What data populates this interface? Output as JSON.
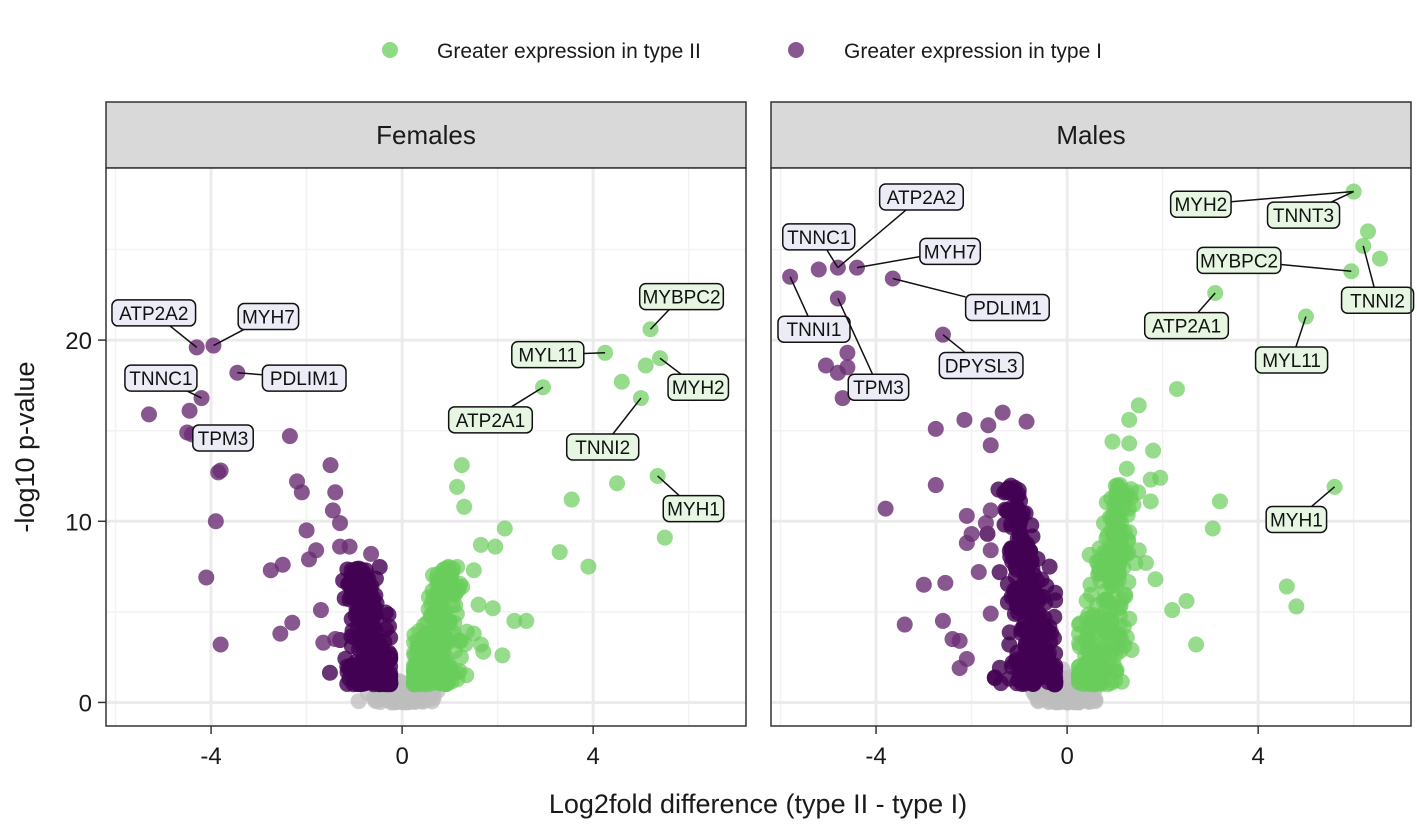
{
  "legend": {
    "items": [
      {
        "label": "Greater expression in type II",
        "color": "#6acd5b"
      },
      {
        "label": "Greater expression in type I",
        "color": "#7a3d80"
      }
    ]
  },
  "colors": {
    "type_ii": "#6acd5b",
    "type_i": "#6b2d74",
    "type_i_dense": "#440154",
    "nonsig": "#bebebe",
    "label_fill_type_ii": "#e6f6e2",
    "label_fill_type_i": "#ececf6",
    "strip_fill": "#d9d9d9"
  },
  "chart_data": {
    "type": "scatter",
    "xlabel": "Log2fold difference (type II - type I)",
    "ylabel": "-log10 p-value",
    "xlim": [
      -6.2,
      7.2
    ],
    "ylim": [
      -1.3,
      29.5
    ],
    "xticks": [
      -4,
      0,
      4
    ],
    "yticks": [
      0,
      10,
      20
    ],
    "grid": true,
    "legend_position": "top",
    "panels": [
      {
        "strip": "Females",
        "highlighted_points": [
          {
            "x": -4.3,
            "y": 19.6,
            "group": "type_i"
          },
          {
            "x": -3.95,
            "y": 19.7,
            "group": "type_i"
          },
          {
            "x": -3.45,
            "y": 18.2,
            "group": "type_i"
          },
          {
            "x": -4.2,
            "y": 16.8,
            "group": "type_i"
          },
          {
            "x": -4.45,
            "y": 16.1,
            "group": "type_i"
          },
          {
            "x": -5.3,
            "y": 15.9,
            "group": "type_i"
          },
          {
            "x": -4.5,
            "y": 14.9,
            "group": "type_i"
          },
          {
            "x": -4.4,
            "y": 14.8,
            "group": "type_i"
          },
          {
            "x": -2.35,
            "y": 14.7,
            "group": "type_i"
          },
          {
            "x": -3.8,
            "y": 12.8,
            "group": "type_i"
          },
          {
            "x": -3.85,
            "y": 12.7,
            "group": "type_i"
          },
          {
            "x": -1.5,
            "y": 13.1,
            "group": "type_i"
          },
          {
            "x": -2.2,
            "y": 12.2,
            "group": "type_i"
          },
          {
            "x": -2.1,
            "y": 11.6,
            "group": "type_i"
          },
          {
            "x": -1.4,
            "y": 11.6,
            "group": "type_i"
          },
          {
            "x": -1.45,
            "y": 10.6,
            "group": "type_i"
          },
          {
            "x": -1.3,
            "y": 9.9,
            "group": "type_i"
          },
          {
            "x": -3.9,
            "y": 10.0,
            "group": "type_i"
          },
          {
            "x": -2.0,
            "y": 9.5,
            "group": "type_i"
          },
          {
            "x": -1.8,
            "y": 8.4,
            "group": "type_i"
          },
          {
            "x": -1.3,
            "y": 8.6,
            "group": "type_i"
          },
          {
            "x": -1.1,
            "y": 8.6,
            "group": "type_i"
          },
          {
            "x": -0.65,
            "y": 8.2,
            "group": "type_i"
          },
          {
            "x": -1.95,
            "y": 7.9,
            "group": "type_i"
          },
          {
            "x": -2.5,
            "y": 7.6,
            "group": "type_i"
          },
          {
            "x": -2.75,
            "y": 7.3,
            "group": "type_i"
          },
          {
            "x": -4.1,
            "y": 6.9,
            "group": "type_i"
          },
          {
            "x": -1.7,
            "y": 5.1,
            "group": "type_i"
          },
          {
            "x": -2.3,
            "y": 4.4,
            "group": "type_i"
          },
          {
            "x": -2.55,
            "y": 3.8,
            "group": "type_i"
          },
          {
            "x": -1.65,
            "y": 3.3,
            "group": "type_i"
          },
          {
            "x": -3.8,
            "y": 3.2,
            "group": "type_i"
          },
          {
            "x": -1.4,
            "y": 3.5,
            "group": "type_i"
          },
          {
            "x": 5.2,
            "y": 20.6,
            "group": "type_ii"
          },
          {
            "x": 4.25,
            "y": 19.3,
            "group": "type_ii"
          },
          {
            "x": 5.4,
            "y": 19.0,
            "group": "type_ii"
          },
          {
            "x": 5.1,
            "y": 18.6,
            "group": "type_ii"
          },
          {
            "x": 4.6,
            "y": 17.7,
            "group": "type_ii"
          },
          {
            "x": 2.95,
            "y": 17.4,
            "group": "type_ii"
          },
          {
            "x": 5.0,
            "y": 16.8,
            "group": "type_ii"
          },
          {
            "x": 1.25,
            "y": 13.1,
            "group": "type_ii"
          },
          {
            "x": 5.35,
            "y": 12.5,
            "group": "type_ii"
          },
          {
            "x": 4.5,
            "y": 12.1,
            "group": "type_ii"
          },
          {
            "x": 1.15,
            "y": 11.9,
            "group": "type_ii"
          },
          {
            "x": 3.55,
            "y": 11.2,
            "group": "type_ii"
          },
          {
            "x": 1.3,
            "y": 10.8,
            "group": "type_ii"
          },
          {
            "x": 2.15,
            "y": 9.6,
            "group": "type_ii"
          },
          {
            "x": 5.5,
            "y": 9.1,
            "group": "type_ii"
          },
          {
            "x": 1.65,
            "y": 8.7,
            "group": "type_ii"
          },
          {
            "x": 1.95,
            "y": 8.6,
            "group": "type_ii"
          },
          {
            "x": 3.3,
            "y": 8.3,
            "group": "type_ii"
          },
          {
            "x": 3.9,
            "y": 7.5,
            "group": "type_ii"
          },
          {
            "x": 1.5,
            "y": 7.3,
            "group": "type_ii"
          },
          {
            "x": 1.6,
            "y": 5.4,
            "group": "type_ii"
          },
          {
            "x": 1.9,
            "y": 5.2,
            "group": "type_ii"
          },
          {
            "x": 2.35,
            "y": 4.5,
            "group": "type_ii"
          },
          {
            "x": 2.6,
            "y": 4.5,
            "group": "type_ii"
          },
          {
            "x": 1.5,
            "y": 3.8,
            "group": "type_ii"
          },
          {
            "x": 1.65,
            "y": 3.2,
            "group": "type_ii"
          },
          {
            "x": 1.7,
            "y": 2.8,
            "group": "type_ii"
          },
          {
            "x": 2.1,
            "y": 2.6,
            "group": "type_ii"
          }
        ],
        "labels": [
          {
            "text": "ATP2A2",
            "group": "type_i",
            "x": -5.2,
            "y": 21.5,
            "px": -4.3,
            "py": 19.6
          },
          {
            "text": "MYH7",
            "group": "type_i",
            "x": -2.8,
            "y": 21.3,
            "px": -3.95,
            "py": 19.7
          },
          {
            "text": "PDLIM1",
            "group": "type_i",
            "x": -2.05,
            "y": 17.9,
            "px": -3.45,
            "py": 18.2
          },
          {
            "text": "TNNC1",
            "group": "type_i",
            "x": -5.05,
            "y": 17.9,
            "px": -4.2,
            "py": 16.8
          },
          {
            "text": "TPM3",
            "group": "type_i",
            "x": -3.75,
            "y": 14.6,
            "px": -4.4,
            "py": 14.8
          },
          {
            "text": "MYBPC2",
            "group": "type_ii",
            "x": 5.85,
            "y": 22.4,
            "px": 5.2,
            "py": 20.6
          },
          {
            "text": "MYL11",
            "group": "type_ii",
            "x": 3.05,
            "y": 19.2,
            "px": 4.25,
            "py": 19.3
          },
          {
            "text": "MYH2",
            "group": "type_ii",
            "x": 6.2,
            "y": 17.4,
            "px": 5.4,
            "py": 19.0
          },
          {
            "text": "ATP2A1",
            "group": "type_ii",
            "x": 1.85,
            "y": 15.6,
            "px": 2.95,
            "py": 17.4
          },
          {
            "text": "TNNI2",
            "group": "type_ii",
            "x": 4.2,
            "y": 14.1,
            "px": 5.0,
            "py": 16.8
          },
          {
            "text": "MYH1",
            "group": "type_ii",
            "x": 6.1,
            "y": 10.7,
            "px": 5.35,
            "py": 12.5
          }
        ]
      },
      {
        "strip": "Males",
        "highlighted_points": [
          {
            "x": -5.8,
            "y": 23.5,
            "group": "type_i"
          },
          {
            "x": -5.2,
            "y": 23.9,
            "group": "type_i"
          },
          {
            "x": -4.8,
            "y": 24.0,
            "group": "type_i"
          },
          {
            "x": -4.4,
            "y": 24.0,
            "group": "type_i"
          },
          {
            "x": -3.65,
            "y": 23.4,
            "group": "type_i"
          },
          {
            "x": -4.8,
            "y": 22.3,
            "group": "type_i"
          },
          {
            "x": -2.6,
            "y": 20.3,
            "group": "type_i"
          },
          {
            "x": -4.6,
            "y": 19.3,
            "group": "type_i"
          },
          {
            "x": -5.05,
            "y": 18.6,
            "group": "type_i"
          },
          {
            "x": -4.6,
            "y": 18.5,
            "group": "type_i"
          },
          {
            "x": -4.8,
            "y": 18.2,
            "group": "type_i"
          },
          {
            "x": -4.7,
            "y": 16.8,
            "group": "type_i"
          },
          {
            "x": -2.15,
            "y": 15.6,
            "group": "type_i"
          },
          {
            "x": -1.35,
            "y": 16.0,
            "group": "type_i"
          },
          {
            "x": -2.75,
            "y": 15.1,
            "group": "type_i"
          },
          {
            "x": -0.85,
            "y": 15.5,
            "group": "type_i"
          },
          {
            "x": -1.65,
            "y": 15.3,
            "group": "type_i"
          },
          {
            "x": -1.6,
            "y": 14.2,
            "group": "type_i"
          },
          {
            "x": -2.75,
            "y": 12.0,
            "group": "type_i"
          },
          {
            "x": -3.8,
            "y": 10.7,
            "group": "type_i"
          },
          {
            "x": -2.1,
            "y": 10.3,
            "group": "type_i"
          },
          {
            "x": -1.6,
            "y": 10.6,
            "group": "type_i"
          },
          {
            "x": -1.7,
            "y": 9.9,
            "group": "type_i"
          },
          {
            "x": -2.0,
            "y": 9.3,
            "group": "type_i"
          },
          {
            "x": -2.1,
            "y": 8.8,
            "group": "type_i"
          },
          {
            "x": -1.6,
            "y": 8.4,
            "group": "type_i"
          },
          {
            "x": -1.85,
            "y": 7.2,
            "group": "type_i"
          },
          {
            "x": -2.55,
            "y": 6.6,
            "group": "type_i"
          },
          {
            "x": -3.0,
            "y": 6.5,
            "group": "type_i"
          },
          {
            "x": -1.6,
            "y": 4.9,
            "group": "type_i"
          },
          {
            "x": -2.6,
            "y": 4.5,
            "group": "type_i"
          },
          {
            "x": -3.4,
            "y": 4.3,
            "group": "type_i"
          },
          {
            "x": -2.4,
            "y": 3.5,
            "group": "type_i"
          },
          {
            "x": -2.25,
            "y": 3.4,
            "group": "type_i"
          },
          {
            "x": -2.1,
            "y": 2.4,
            "group": "type_i"
          },
          {
            "x": -2.25,
            "y": 1.9,
            "group": "type_i"
          },
          {
            "x": 6.0,
            "y": 28.2,
            "group": "type_ii"
          },
          {
            "x": 6.3,
            "y": 26.0,
            "group": "type_ii"
          },
          {
            "x": 6.2,
            "y": 25.2,
            "group": "type_ii"
          },
          {
            "x": 6.55,
            "y": 24.5,
            "group": "type_ii"
          },
          {
            "x": 5.95,
            "y": 23.8,
            "group": "type_ii"
          },
          {
            "x": 3.1,
            "y": 22.6,
            "group": "type_ii"
          },
          {
            "x": 5.0,
            "y": 21.3,
            "group": "type_ii"
          },
          {
            "x": 2.3,
            "y": 17.3,
            "group": "type_ii"
          },
          {
            "x": 1.5,
            "y": 16.4,
            "group": "type_ii"
          },
          {
            "x": 1.3,
            "y": 15.6,
            "group": "type_ii"
          },
          {
            "x": 0.95,
            "y": 14.4,
            "group": "type_ii"
          },
          {
            "x": 1.8,
            "y": 13.9,
            "group": "type_ii"
          },
          {
            "x": 1.3,
            "y": 14.3,
            "group": "type_ii"
          },
          {
            "x": 1.25,
            "y": 12.9,
            "group": "type_ii"
          },
          {
            "x": 1.75,
            "y": 12.3,
            "group": "type_ii"
          },
          {
            "x": 1.95,
            "y": 12.4,
            "group": "type_ii"
          },
          {
            "x": 1.75,
            "y": 11.1,
            "group": "type_ii"
          },
          {
            "x": 5.6,
            "y": 11.9,
            "group": "type_ii"
          },
          {
            "x": 3.2,
            "y": 11.1,
            "group": "type_ii"
          },
          {
            "x": 3.05,
            "y": 9.6,
            "group": "type_ii"
          },
          {
            "x": 1.3,
            "y": 9.4,
            "group": "type_ii"
          },
          {
            "x": 1.5,
            "y": 8.4,
            "group": "type_ii"
          },
          {
            "x": 1.65,
            "y": 7.7,
            "group": "type_ii"
          },
          {
            "x": 1.85,
            "y": 6.8,
            "group": "type_ii"
          },
          {
            "x": 4.6,
            "y": 6.4,
            "group": "type_ii"
          },
          {
            "x": 2.5,
            "y": 5.6,
            "group": "type_ii"
          },
          {
            "x": 2.2,
            "y": 5.1,
            "group": "type_ii"
          },
          {
            "x": 4.8,
            "y": 5.3,
            "group": "type_ii"
          },
          {
            "x": 1.25,
            "y": 3.6,
            "group": "type_ii"
          },
          {
            "x": 2.7,
            "y": 3.2,
            "group": "type_ii"
          },
          {
            "x": 1.35,
            "y": 2.9,
            "group": "type_ii"
          }
        ],
        "labels": [
          {
            "text": "ATP2A2",
            "group": "type_i",
            "x": -3.05,
            "y": 27.9,
            "px": -4.8,
            "py": 24.0
          },
          {
            "text": "TNNC1",
            "group": "type_i",
            "x": -5.2,
            "y": 25.7,
            "px": -4.8,
            "py": 24.0
          },
          {
            "text": "MYH7",
            "group": "type_i",
            "x": -2.45,
            "y": 24.9,
            "px": -4.4,
            "py": 24.0
          },
          {
            "text": "PDLIM1",
            "group": "type_i",
            "x": -1.25,
            "y": 21.8,
            "px": -3.65,
            "py": 23.4
          },
          {
            "text": "TNNI1",
            "group": "type_i",
            "x": -5.3,
            "y": 20.6,
            "px": -5.8,
            "py": 23.5
          },
          {
            "text": "DPYSL3",
            "group": "type_i",
            "x": -1.8,
            "y": 18.6,
            "px": -2.6,
            "py": 20.3
          },
          {
            "text": "TPM3",
            "group": "type_i",
            "x": -3.95,
            "y": 17.4,
            "px": -4.8,
            "py": 22.3
          },
          {
            "text": "MYH2",
            "group": "type_ii",
            "x": 2.8,
            "y": 27.5,
            "px": 6.0,
            "py": 28.2
          },
          {
            "text": "TNNT3",
            "group": "type_ii",
            "x": 4.95,
            "y": 26.9,
            "px": 6.0,
            "py": 28.2
          },
          {
            "text": "MYBPC2",
            "group": "type_ii",
            "x": 3.6,
            "y": 24.4,
            "px": 5.95,
            "py": 23.8
          },
          {
            "text": "TNNI2",
            "group": "type_ii",
            "x": 6.5,
            "y": 22.2,
            "px": 6.2,
            "py": 25.2
          },
          {
            "text": "ATP2A1",
            "group": "type_ii",
            "x": 2.5,
            "y": 20.8,
            "px": 3.1,
            "py": 22.6
          },
          {
            "text": "MYL11",
            "group": "type_ii",
            "x": 4.7,
            "y": 18.9,
            "px": 5.0,
            "py": 21.3
          },
          {
            "text": "MYH1",
            "group": "type_ii",
            "x": 4.8,
            "y": 10.1,
            "px": 5.6,
            "py": 11.9
          }
        ]
      }
    ]
  }
}
